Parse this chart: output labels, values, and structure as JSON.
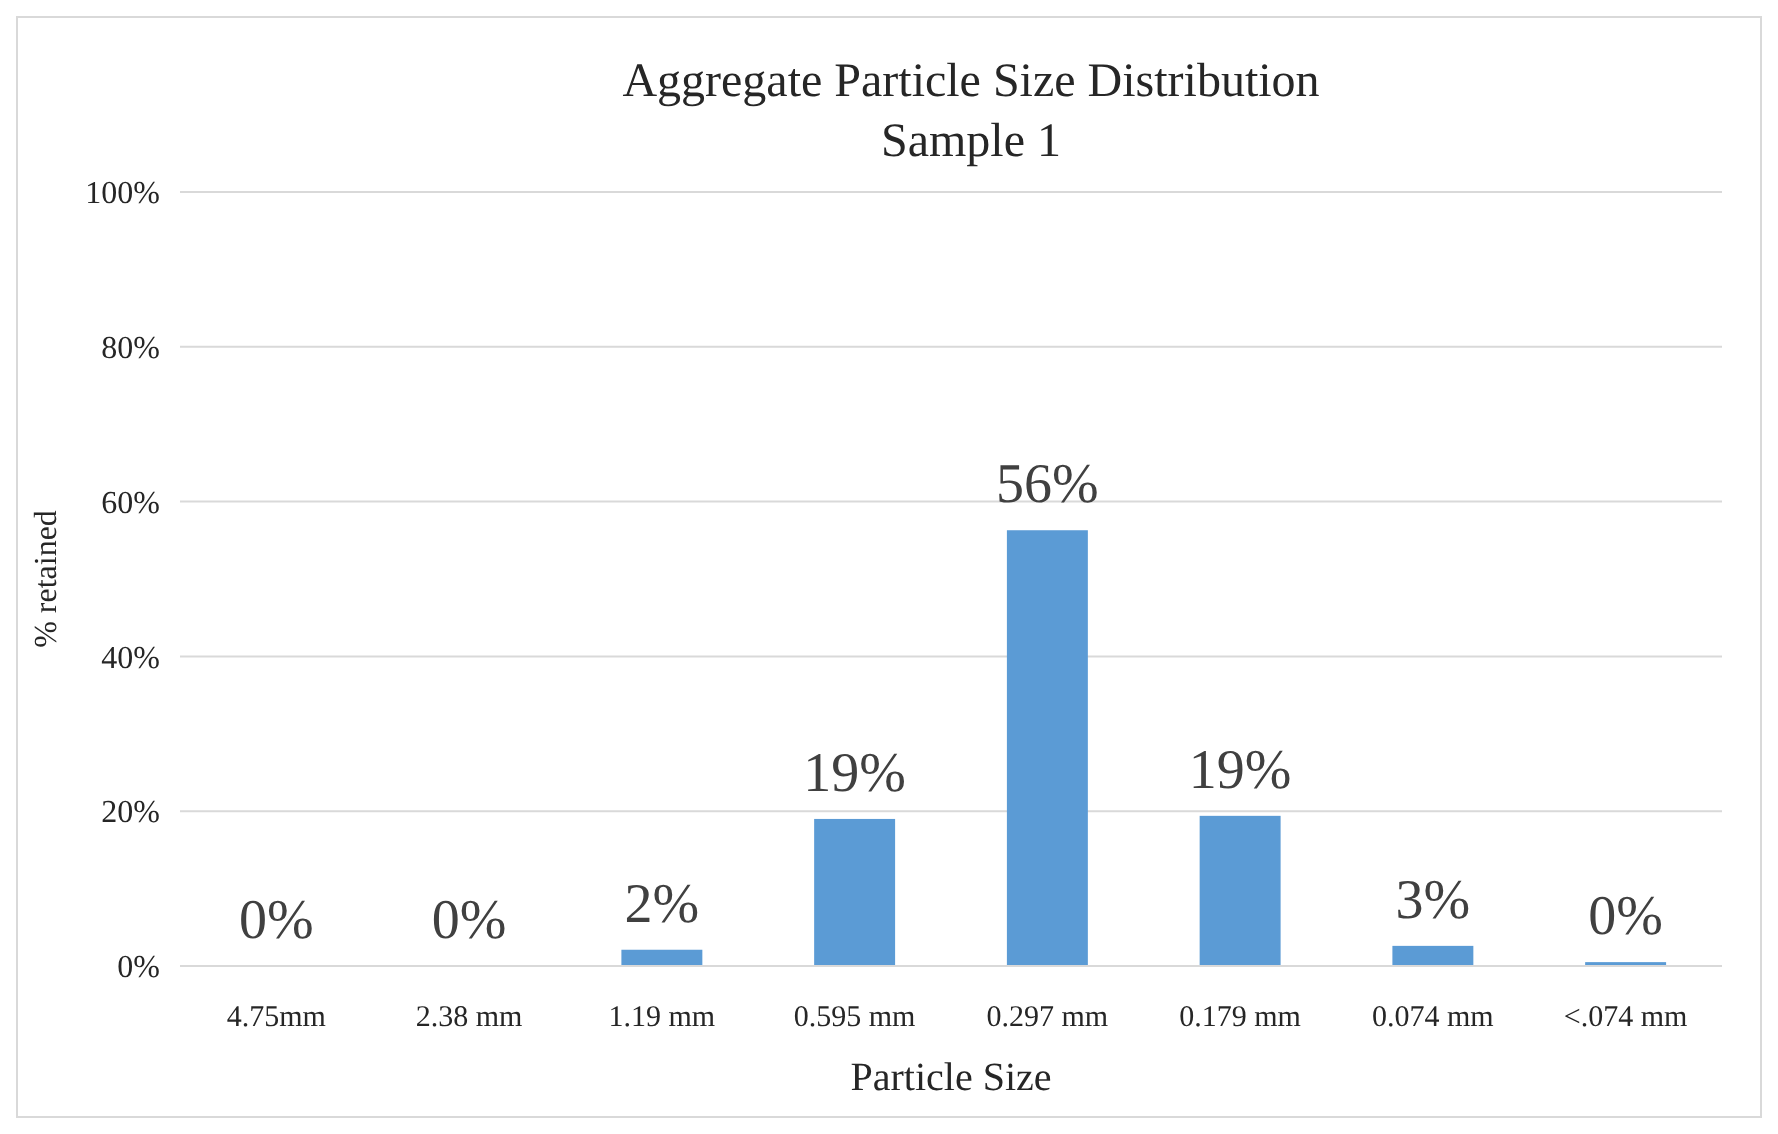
{
  "chart_data": {
    "type": "bar",
    "title": "Aggregate  Particle Size Distribution",
    "subtitle": "Sample 1",
    "xlabel": "Particle Size",
    "ylabel": "% retained",
    "categories": [
      "4.75mm",
      "2.38 mm",
      "1.19 mm",
      "0.595 mm",
      "0.297 mm",
      "0.179 mm",
      "0.074 mm",
      "<.074 mm"
    ],
    "values": [
      0,
      0,
      2.1,
      19,
      56.3,
      19.4,
      2.6,
      0.5
    ],
    "value_labels": [
      "0%",
      "0%",
      "2%",
      "19%",
      "56%",
      "19%",
      "3%",
      "0%"
    ],
    "color": "#5b9bd5",
    "ylim": [
      0,
      100
    ],
    "yticks": [
      {
        "value": 0,
        "label": "0%"
      },
      {
        "value": 20,
        "label": "20%"
      },
      {
        "value": 40,
        "label": "40%"
      },
      {
        "value": 60,
        "label": "60%"
      },
      {
        "value": 80,
        "label": "80%"
      },
      {
        "value": 100,
        "label": "100%"
      }
    ],
    "grid": "y"
  }
}
